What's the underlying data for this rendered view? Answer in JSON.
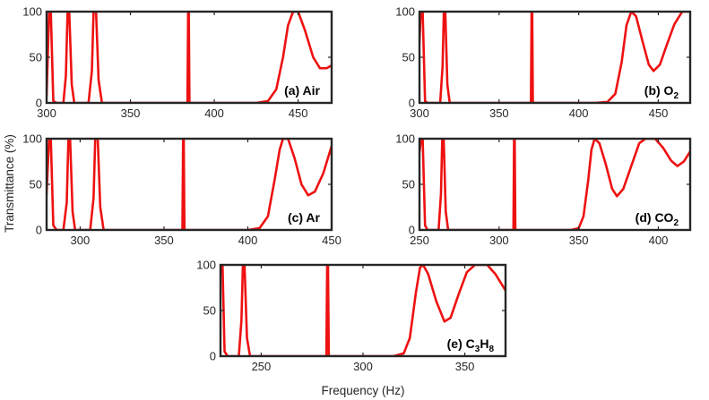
{
  "figure": {
    "xlabel": "Frequency (Hz)",
    "ylabel": "Transmittance (%)"
  },
  "colors": {
    "line": "#ee1111",
    "axes": "#262626"
  },
  "chart_data": [
    {
      "type": "line",
      "panel_label": "(a) Air",
      "xlim": [
        300,
        470
      ],
      "ylim": [
        0,
        100
      ],
      "xticks": [
        300,
        350,
        400,
        450
      ],
      "yticks": [
        0,
        50,
        100
      ],
      "xtick_labels": [
        "300",
        "350",
        "400",
        "450"
      ],
      "ytick_labels": [
        "0",
        "50",
        "100"
      ],
      "series": [
        {
          "values": [
            [
              300,
              8
            ],
            [
              301.5,
              100
            ],
            [
              302.5,
              100
            ],
            [
              304,
              2
            ],
            [
              306,
              0
            ],
            [
              310,
              0
            ],
            [
              311.5,
              30
            ],
            [
              312.5,
              100
            ],
            [
              313.5,
              100
            ],
            [
              315,
              20
            ],
            [
              316.5,
              0
            ],
            [
              325,
              0
            ],
            [
              327,
              35
            ],
            [
              328,
              100
            ],
            [
              329.5,
              100
            ],
            [
              331,
              25
            ],
            [
              333,
              0
            ],
            [
              384,
              0
            ],
            [
              384.4,
              100
            ],
            [
              384.8,
              100
            ],
            [
              385.2,
              0
            ],
            [
              425,
              0
            ],
            [
              432,
              2
            ],
            [
              437,
              15
            ],
            [
              441,
              50
            ],
            [
              444,
              85
            ],
            [
              447,
              100
            ],
            [
              450,
              100
            ],
            [
              454,
              80
            ],
            [
              459,
              50
            ],
            [
              463,
              38
            ],
            [
              467,
              38
            ],
            [
              470,
              41
            ]
          ]
        }
      ]
    },
    {
      "type": "line",
      "panel_label": "(b) O",
      "panel_label_sub": "2",
      "xlim": [
        300,
        470
      ],
      "ylim": [
        0,
        100
      ],
      "xticks": [
        300,
        350,
        400,
        450
      ],
      "yticks": [
        0,
        50,
        100
      ],
      "xtick_labels": [
        "300",
        "350",
        "400",
        "450"
      ],
      "ytick_labels": [
        "0",
        "50",
        "100"
      ],
      "series": [
        {
          "values": [
            [
              300,
              65
            ],
            [
              300.8,
              100
            ],
            [
              302,
              100
            ],
            [
              303.5,
              2
            ],
            [
              305,
              0
            ],
            [
              313,
              0
            ],
            [
              314.5,
              40
            ],
            [
              315.3,
              100
            ],
            [
              316.2,
              100
            ],
            [
              317.5,
              20
            ],
            [
              319,
              0
            ],
            [
              370,
              0
            ],
            [
              370.4,
              100
            ],
            [
              370.8,
              100
            ],
            [
              371.2,
              0
            ],
            [
              410,
              0
            ],
            [
              418,
              1
            ],
            [
              423,
              10
            ],
            [
              427,
              45
            ],
            [
              430,
              85
            ],
            [
              433,
              100
            ],
            [
              436,
              95
            ],
            [
              440,
              68
            ],
            [
              444,
              42
            ],
            [
              447,
              35
            ],
            [
              451,
              42
            ],
            [
              455,
              62
            ],
            [
              460,
              86
            ],
            [
              465,
              100
            ],
            [
              470,
              100
            ]
          ]
        }
      ]
    },
    {
      "type": "line",
      "panel_label": "(c) Ar",
      "xlim": [
        280,
        450
      ],
      "ylim": [
        0,
        100
      ],
      "xticks": [
        300,
        350,
        400,
        450
      ],
      "yticks": [
        0,
        50,
        100
      ],
      "xtick_labels": [
        "300",
        "350",
        "400",
        "450"
      ],
      "ytick_labels": [
        "0",
        "50",
        "100"
      ],
      "series": [
        {
          "values": [
            [
              280,
              40
            ],
            [
              281.5,
              100
            ],
            [
              282.5,
              100
            ],
            [
              284,
              5
            ],
            [
              286,
              0
            ],
            [
              290,
              0
            ],
            [
              292,
              30
            ],
            [
              293,
              100
            ],
            [
              294,
              100
            ],
            [
              295.5,
              20
            ],
            [
              297,
              0
            ],
            [
              306,
              0
            ],
            [
              308,
              35
            ],
            [
              309,
              100
            ],
            [
              310.5,
              100
            ],
            [
              312,
              25
            ],
            [
              314,
              0
            ],
            [
              361,
              0
            ],
            [
              361.4,
              100
            ],
            [
              361.8,
              100
            ],
            [
              362.2,
              0
            ],
            [
              400,
              0
            ],
            [
              407,
              2
            ],
            [
              412,
              15
            ],
            [
              416,
              55
            ],
            [
              419,
              88
            ],
            [
              421,
              100
            ],
            [
              424,
              100
            ],
            [
              428,
              78
            ],
            [
              432,
              50
            ],
            [
              436,
              38
            ],
            [
              440,
              42
            ],
            [
              445,
              62
            ],
            [
              450,
              92
            ]
          ]
        }
      ]
    },
    {
      "type": "line",
      "panel_label": "(d) CO",
      "panel_label_sub": "2",
      "xlim": [
        250,
        420
      ],
      "ylim": [
        0,
        100
      ],
      "xticks": [
        250,
        300,
        350,
        400
      ],
      "yticks": [
        0,
        50,
        100
      ],
      "xtick_labels": [
        "250",
        "300",
        "350",
        "400"
      ],
      "ytick_labels": [
        "0",
        "50",
        "100"
      ],
      "series": [
        {
          "values": [
            [
              250,
              85
            ],
            [
              251,
              100
            ],
            [
              252,
              100
            ],
            [
              253.5,
              5
            ],
            [
              255,
              0
            ],
            [
              262,
              0
            ],
            [
              263.5,
              40
            ],
            [
              264.3,
              100
            ],
            [
              265.2,
              100
            ],
            [
              266.5,
              20
            ],
            [
              268,
              0
            ],
            [
              309,
              0
            ],
            [
              309.4,
              100
            ],
            [
              309.8,
              100
            ],
            [
              310.2,
              0
            ],
            [
              345,
              0
            ],
            [
              350,
              2
            ],
            [
              353,
              15
            ],
            [
              356,
              55
            ],
            [
              358,
              88
            ],
            [
              360,
              100
            ],
            [
              363,
              95
            ],
            [
              367,
              72
            ],
            [
              371,
              45
            ],
            [
              374,
              37
            ],
            [
              378,
              45
            ],
            [
              383,
              70
            ],
            [
              388,
              95
            ],
            [
              392,
              100
            ],
            [
              398,
              100
            ],
            [
              403,
              90
            ],
            [
              408,
              76
            ],
            [
              412,
              70
            ],
            [
              416,
              75
            ],
            [
              420,
              86
            ]
          ]
        }
      ]
    },
    {
      "type": "line",
      "panel_label": "(e) C",
      "panel_label_sub": "3",
      "panel_label_mid": "H",
      "panel_label_sub2": "8",
      "xlim": [
        230,
        370
      ],
      "ylim": [
        0,
        100
      ],
      "xticks": [
        250,
        300,
        350
      ],
      "yticks": [
        0,
        50,
        100
      ],
      "xtick_labels": [
        "250",
        "300",
        "350"
      ],
      "ytick_labels": [
        "0",
        "50",
        "100"
      ],
      "series": [
        {
          "values": [
            [
              230,
              90
            ],
            [
              231,
              100
            ],
            [
              232,
              5
            ],
            [
              233.5,
              0
            ],
            [
              239,
              0
            ],
            [
              240.3,
              40
            ],
            [
              241,
              100
            ],
            [
              241.8,
              100
            ],
            [
              243,
              20
            ],
            [
              244.5,
              0
            ],
            [
              282,
              0
            ],
            [
              282.4,
              100
            ],
            [
              282.8,
              100
            ],
            [
              283.2,
              0
            ],
            [
              315,
              0
            ],
            [
              320,
              3
            ],
            [
              323,
              20
            ],
            [
              326,
              70
            ],
            [
              328,
              97
            ],
            [
              329.5,
              100
            ],
            [
              332,
              90
            ],
            [
              336,
              60
            ],
            [
              340,
              38
            ],
            [
              343,
              42
            ],
            [
              347,
              68
            ],
            [
              351,
              92
            ],
            [
              355,
              100
            ],
            [
              361,
              100
            ],
            [
              365,
              90
            ],
            [
              370,
              72
            ]
          ]
        }
      ]
    }
  ]
}
